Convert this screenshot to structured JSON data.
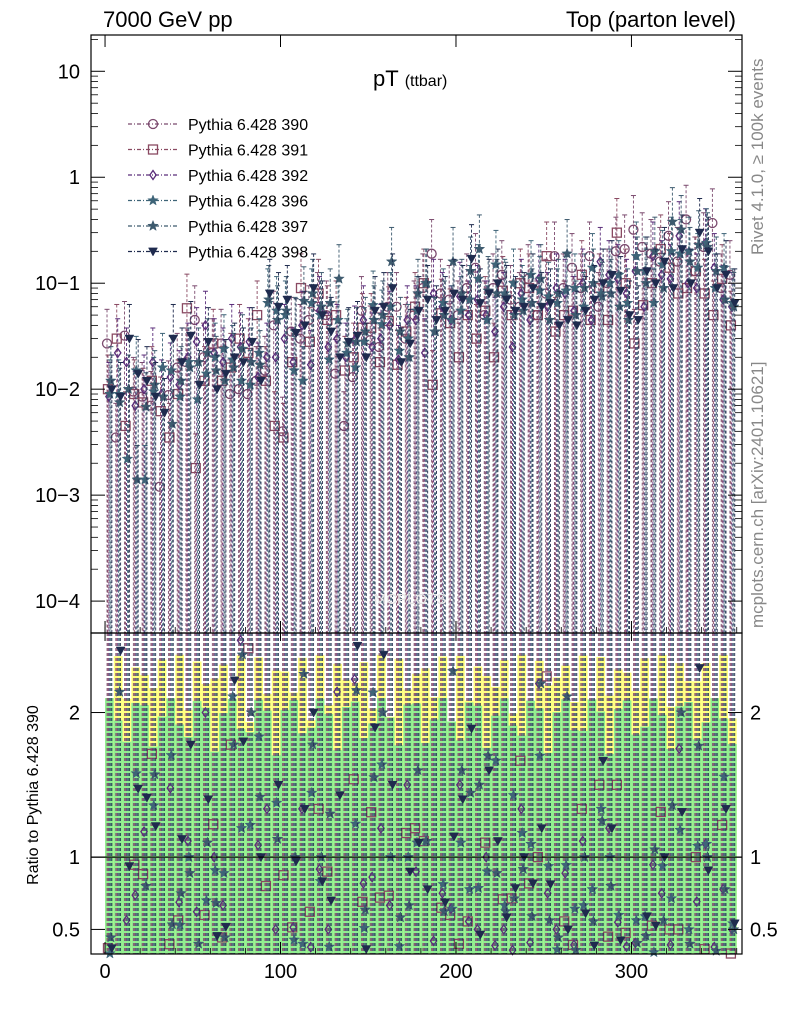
{
  "header": {
    "left": "7000 GeV pp",
    "right": "Top (parton level)"
  },
  "side_labels": {
    "rivet": "Rivet 4.1.0, ≥ 100k events",
    "mcplots": "mcplots.cern.ch [arXiv:2401.10621]"
  },
  "watermark": "MCPLOTS",
  "colors": {
    "s390": "#7b4a6e",
    "s391": "#8a4a62",
    "s392": "#5a2d7a",
    "s396": "#3e6478",
    "s397": "#3d5a6e",
    "s398": "#1f2b4e",
    "band_yellow": "#ffff80",
    "band_green": "#90ee90"
  },
  "chart_data": {
    "type": "scatter",
    "title_main": "pT",
    "title_sub": "(ttbar)",
    "xlabel": "",
    "ylabel_main": "",
    "ylabel_ratio": "Ratio to Pythia 6.428 390",
    "xlim": [
      -8,
      363
    ],
    "ylim_main": [
      5e-05,
      22
    ],
    "ylim_ratio": [
      0.33,
      2.55
    ],
    "log_y_main": true,
    "x_ticks": [
      "0",
      "100",
      "200",
      "300"
    ],
    "y_ticks_main": [
      "10",
      "1",
      "10−1",
      "10−2",
      "10−3",
      "10−4"
    ],
    "y_ticks_ratio": [
      "2",
      "1",
      "0.5"
    ],
    "bin_width": 5,
    "x_centers": [
      2.5,
      7.5,
      12.5,
      17.5,
      22.5,
      27.5,
      32.5,
      37.5,
      42.5,
      47.5,
      52.5,
      57.5,
      62.5,
      67.5,
      72.5,
      77.5,
      82.5,
      87.5,
      92.5,
      97.5,
      102.5,
      107.5,
      112.5,
      117.5,
      122.5,
      127.5,
      132.5,
      137.5,
      142.5,
      147.5,
      152.5,
      157.5,
      162.5,
      167.5,
      172.5,
      177.5,
      182.5,
      187.5,
      192.5,
      197.5,
      202.5,
      207.5,
      212.5,
      217.5,
      222.5,
      227.5,
      232.5,
      237.5,
      242.5,
      247.5,
      252.5,
      257.5,
      262.5,
      267.5,
      272.5,
      277.5,
      282.5,
      287.5,
      292.5,
      297.5,
      302.5,
      307.5,
      312.5,
      317.5,
      322.5,
      327.5,
      332.5,
      337.5,
      342.5,
      347.5,
      352.5,
      357.5
    ],
    "series": [
      {
        "name": "Pythia 6.428 390",
        "marker": "circle",
        "values": [
          0.027,
          0.0035,
          0.032,
          0.0095,
          0.0085,
          0.007,
          0.0012,
          0.0088,
          0.016,
          0.018,
          0.045,
          0.02,
          0.022,
          0.027,
          0.009,
          0.01,
          0.009,
          0.012,
          0.015,
          0.04,
          0.004,
          0.035,
          0.03,
          0.045,
          0.06,
          0.05,
          0.014,
          0.0045,
          0.013,
          0.055,
          0.029,
          0.025,
          0.06,
          0.06,
          0.03,
          0.05,
          0.09,
          0.19,
          0.08,
          0.07,
          0.05,
          0.09,
          0.14,
          0.05,
          0.09,
          0.12,
          0.07,
          0.06,
          0.11,
          0.05,
          0.08,
          0.18,
          0.09,
          0.14,
          0.09,
          0.18,
          0.06,
          0.1,
          0.2,
          0.21,
          0.32,
          0.22,
          0.19,
          0.16,
          0.28,
          0.16,
          0.4,
          0.13,
          0.22,
          0.37,
          0.09,
          0.12
        ]
      },
      {
        "name": "Pythia 6.428 391",
        "marker": "square",
        "values": [
          0.01,
          0.03,
          0.0045,
          0.009,
          0.0075,
          0.012,
          0.0062,
          0.0035,
          0.009,
          0.058,
          0.0018,
          0.012,
          0.027,
          0.012,
          0.016,
          0.03,
          0.022,
          0.05,
          0.012,
          0.0045,
          0.0035,
          0.018,
          0.09,
          0.028,
          0.08,
          0.045,
          0.05,
          0.015,
          0.02,
          0.038,
          0.038,
          0.018,
          0.044,
          0.017,
          0.035,
          0.06,
          0.1,
          0.011,
          0.052,
          0.042,
          0.02,
          0.05,
          0.03,
          0.055,
          0.02,
          0.085,
          0.05,
          0.1,
          0.09,
          0.05,
          0.18,
          0.035,
          0.05,
          0.055,
          0.12,
          0.045,
          0.09,
          0.045,
          0.3,
          0.1,
          0.027,
          0.062,
          0.1,
          0.21,
          0.14,
          0.08,
          0.09,
          0.13,
          0.08,
          0.05,
          0.11,
          0.04
        ]
      },
      {
        "name": "Pythia 6.428 392",
        "marker": "diamond",
        "values": [
          0.0085,
          0.022,
          0.018,
          0.007,
          0.01,
          0.018,
          0.009,
          0.013,
          0.011,
          0.02,
          0.028,
          0.04,
          0.022,
          0.018,
          0.03,
          0.025,
          0.028,
          0.013,
          0.02,
          0.02,
          0.03,
          0.018,
          0.04,
          0.017,
          0.055,
          0.025,
          0.03,
          0.02,
          0.029,
          0.045,
          0.025,
          0.03,
          0.04,
          0.019,
          0.045,
          0.045,
          0.022,
          0.08,
          0.06,
          0.045,
          0.075,
          0.05,
          0.07,
          0.05,
          0.035,
          0.06,
          0.025,
          0.08,
          0.045,
          0.11,
          0.06,
          0.09,
          0.08,
          0.055,
          0.1,
          0.045,
          0.16,
          0.12,
          0.11,
          0.08,
          0.13,
          0.06,
          0.18,
          0.12,
          0.11,
          0.28,
          0.1,
          0.09,
          0.24,
          0.14,
          0.07,
          0.06
        ]
      },
      {
        "name": "Pythia 6.428 396",
        "marker": "star",
        "values": [
          0.009,
          0.009,
          0.0022,
          0.015,
          0.0014,
          0.0095,
          0.016,
          0.015,
          0.0085,
          0.018,
          0.008,
          0.014,
          0.02,
          0.024,
          0.019,
          0.012,
          0.011,
          0.022,
          0.065,
          0.055,
          0.05,
          0.015,
          0.012,
          0.065,
          0.05,
          0.019,
          0.045,
          0.022,
          0.016,
          0.028,
          0.062,
          0.041,
          0.06,
          0.023,
          0.03,
          0.055,
          0.1,
          0.035,
          0.065,
          0.045,
          0.055,
          0.07,
          0.11,
          0.045,
          0.15,
          0.08,
          0.1,
          0.07,
          0.12,
          0.085,
          0.075,
          0.065,
          0.085,
          0.09,
          0.06,
          0.14,
          0.08,
          0.1,
          0.12,
          0.065,
          0.18,
          0.13,
          0.065,
          0.15,
          0.2,
          0.19,
          0.2,
          0.14,
          0.24,
          0.09,
          0.14,
          0.065
        ]
      },
      {
        "name": "Pythia 6.428 397",
        "marker": "star",
        "values": [
          0.012,
          0.0075,
          0.01,
          0.0014,
          0.0068,
          0.011,
          0.0085,
          0.0047,
          0.012,
          0.016,
          0.018,
          0.022,
          0.015,
          0.012,
          0.016,
          0.024,
          0.018,
          0.017,
          0.07,
          0.045,
          0.055,
          0.035,
          0.068,
          0.08,
          0.06,
          0.065,
          0.11,
          0.027,
          0.028,
          0.035,
          0.045,
          0.05,
          0.16,
          0.035,
          0.02,
          0.08,
          0.1,
          0.035,
          0.05,
          0.16,
          0.08,
          0.13,
          0.21,
          0.085,
          0.08,
          0.075,
          0.05,
          0.055,
          0.065,
          0.11,
          0.045,
          0.08,
          0.19,
          0.05,
          0.09,
          0.1,
          0.075,
          0.08,
          0.06,
          0.045,
          0.13,
          0.1,
          0.2,
          0.09,
          0.38,
          0.32,
          0.16,
          0.23,
          0.22,
          0.13,
          0.07,
          0.06
        ]
      },
      {
        "name": "Pythia 6.428 398",
        "marker": "triangle-down",
        "values": [
          0.01,
          0.0085,
          0.03,
          0.014,
          0.012,
          0.0085,
          0.006,
          0.03,
          0.018,
          0.032,
          0.011,
          0.028,
          0.01,
          0.014,
          0.02,
          0.018,
          0.028,
          0.012,
          0.08,
          0.06,
          0.07,
          0.034,
          0.04,
          0.09,
          0.05,
          0.035,
          0.02,
          0.028,
          0.032,
          0.02,
          0.055,
          0.06,
          0.09,
          0.018,
          0.027,
          0.055,
          0.07,
          0.045,
          0.055,
          0.08,
          0.07,
          0.17,
          0.065,
          0.08,
          0.1,
          0.07,
          0.055,
          0.06,
          0.09,
          0.06,
          0.065,
          0.04,
          0.045,
          0.04,
          0.055,
          0.07,
          0.1,
          0.12,
          0.085,
          0.05,
          0.045,
          0.13,
          0.1,
          0.16,
          0.09,
          0.21,
          0.1,
          0.3,
          0.2,
          0.09,
          0.12,
          0.065
        ]
      }
    ]
  }
}
